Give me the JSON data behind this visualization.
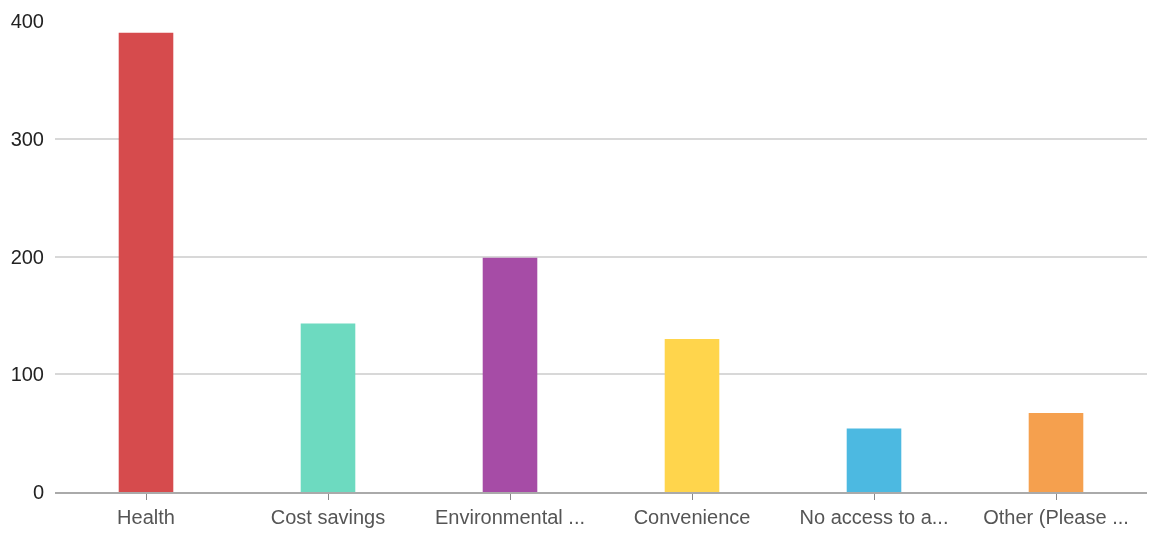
{
  "chart_data": {
    "type": "bar",
    "categories": [
      "Health",
      "Cost savings",
      "Environmental ...",
      "Convenience",
      "No access to a...",
      "Other (Please ..."
    ],
    "values": [
      390,
      143,
      199,
      130,
      54,
      67
    ],
    "colors": [
      "#d64b4d",
      "#6ddac0",
      "#a64ca6",
      "#ffd54c",
      "#4cb9e1",
      "#f5a04e"
    ],
    "ylim": [
      0,
      400
    ],
    "yticks": [
      0,
      100,
      200,
      300,
      400
    ],
    "grid": "y"
  }
}
